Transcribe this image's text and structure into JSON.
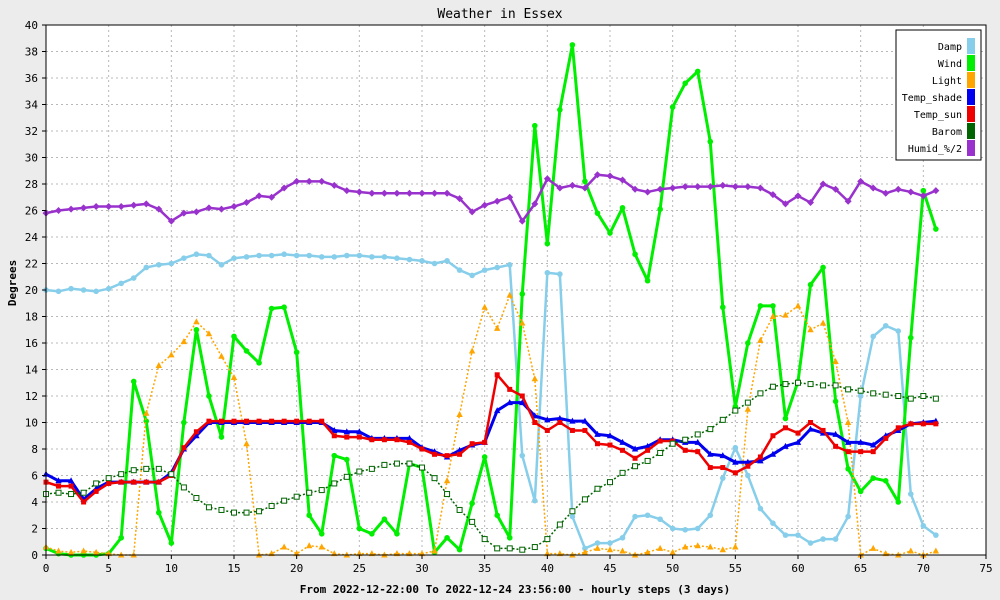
{
  "chart_data": {
    "type": "line",
    "title": "Weather in Essex",
    "xlabel": "From 2022-12-22:00 To 2022-12-24 23:56:00 - hourly steps (3 days)",
    "ylabel": "Degrees",
    "xlim": [
      0,
      75
    ],
    "ylim": [
      0,
      40
    ],
    "xticks": [
      0,
      5,
      10,
      15,
      20,
      25,
      30,
      35,
      40,
      45,
      50,
      55,
      60,
      65,
      70,
      75
    ],
    "yticks": [
      0,
      2,
      4,
      6,
      8,
      10,
      12,
      14,
      16,
      18,
      20,
      22,
      24,
      26,
      28,
      30,
      32,
      34,
      36,
      38,
      40
    ],
    "grid": true,
    "legend_position": "top-right",
    "x": [
      0,
      1,
      2,
      3,
      4,
      5,
      6,
      7,
      8,
      9,
      10,
      11,
      12,
      13,
      14,
      15,
      16,
      17,
      18,
      19,
      20,
      21,
      22,
      23,
      24,
      25,
      26,
      27,
      28,
      29,
      30,
      31,
      32,
      33,
      34,
      35,
      36,
      37,
      38,
      39,
      40,
      41,
      42,
      43,
      44,
      45,
      46,
      47,
      48,
      49,
      50,
      51,
      52,
      53,
      54,
      55,
      56,
      57,
      58,
      59,
      60,
      61,
      62,
      63,
      64,
      65,
      66,
      67,
      68,
      69,
      70,
      71
    ],
    "series": [
      {
        "name": "Damp",
        "color": "#87ceeb",
        "marker": "circle",
        "values": [
          20.0,
          19.9,
          20.1,
          20.0,
          19.9,
          20.1,
          20.5,
          20.9,
          21.7,
          21.9,
          22.0,
          22.4,
          22.7,
          22.6,
          21.9,
          22.4,
          22.5,
          22.6,
          22.6,
          22.7,
          22.6,
          22.6,
          22.5,
          22.5,
          22.6,
          22.6,
          22.5,
          22.5,
          22.4,
          22.3,
          22.2,
          22.0,
          22.2,
          21.5,
          21.1,
          21.5,
          21.7,
          21.9,
          7.5,
          4.1,
          21.3,
          21.2,
          2.9,
          0.5,
          0.9,
          0.9,
          1.3,
          2.9,
          3.0,
          2.7,
          2.0,
          1.9,
          2.0,
          3.0,
          5.8,
          8.1,
          6.0,
          3.5,
          2.4,
          1.5,
          1.5,
          0.9,
          1.2,
          1.2,
          2.9,
          12.0,
          16.5,
          17.3,
          16.9,
          4.6,
          2.2,
          1.5
        ]
      },
      {
        "name": "Wind",
        "color": "#00ee00",
        "marker": "circle",
        "values": [
          0.5,
          0.1,
          0.0,
          0.0,
          0.0,
          0.1,
          1.3,
          13.1,
          10.1,
          3.2,
          0.9,
          10.0,
          17.0,
          12.0,
          8.9,
          16.5,
          15.4,
          14.5,
          18.6,
          18.7,
          15.3,
          3.0,
          1.6,
          7.5,
          7.2,
          2.0,
          1.6,
          2.7,
          1.6,
          6.9,
          6.6,
          0.2,
          1.3,
          0.4,
          3.9,
          7.4,
          3.0,
          1.3,
          19.7,
          32.4,
          23.5,
          33.6,
          38.5,
          28.2,
          25.8,
          24.3,
          26.2,
          22.7,
          20.7,
          26.1,
          33.8,
          35.6,
          36.5,
          31.2,
          18.7,
          11.2,
          16.0,
          18.8,
          18.8,
          10.3,
          13.1,
          20.4,
          21.7,
          11.6,
          6.5,
          4.8,
          5.8,
          5.6,
          4.0,
          16.4,
          27.5,
          24.6
        ]
      },
      {
        "name": "Light",
        "color": "#ffa500",
        "marker": "triangle",
        "values": [
          0.6,
          0.3,
          0.2,
          0.3,
          0.2,
          0.1,
          0.0,
          0.0,
          10.7,
          14.3,
          15.1,
          16.1,
          17.6,
          16.7,
          15.0,
          13.4,
          8.4,
          0.0,
          0.1,
          0.6,
          0.1,
          0.7,
          0.6,
          0.1,
          0.0,
          0.1,
          0.1,
          0.0,
          0.1,
          0.1,
          0.1,
          0.3,
          5.6,
          10.6,
          15.4,
          18.7,
          17.1,
          19.6,
          17.5,
          13.3,
          0.1,
          0.1,
          0.0,
          0.2,
          0.5,
          0.4,
          0.3,
          0.0,
          0.2,
          0.5,
          0.2,
          0.6,
          0.7,
          0.6,
          0.4,
          0.6,
          11.0,
          16.2,
          18.0,
          18.1,
          18.8,
          17.0,
          17.5,
          14.6,
          10.0,
          0.0,
          0.5,
          0.1,
          0.0,
          0.3,
          0.0,
          0.3
        ]
      },
      {
        "name": "Temp_shade",
        "color": "#0000ee",
        "marker": "triangle",
        "values": [
          6.1,
          5.6,
          5.6,
          4.2,
          5.0,
          5.5,
          5.5,
          5.5,
          5.5,
          5.5,
          6.2,
          8.0,
          9.0,
          10.0,
          10.0,
          10.0,
          10.0,
          10.0,
          10.0,
          10.0,
          10.0,
          10.0,
          10.0,
          9.4,
          9.3,
          9.3,
          8.8,
          8.8,
          8.8,
          8.8,
          8.1,
          7.8,
          7.4,
          7.9,
          8.3,
          8.5,
          10.9,
          11.5,
          11.5,
          10.5,
          10.2,
          10.3,
          10.1,
          10.1,
          9.1,
          9.0,
          8.5,
          8.0,
          8.2,
          8.7,
          8.7,
          8.5,
          8.5,
          7.6,
          7.5,
          7.0,
          7.0,
          7.1,
          7.6,
          8.2,
          8.5,
          9.5,
          9.2,
          9.1,
          8.5,
          8.5,
          8.3,
          9.0,
          9.4,
          9.9,
          10.0,
          10.1
        ]
      },
      {
        "name": "Temp_sun",
        "color": "#ee0000",
        "marker": "square",
        "values": [
          5.5,
          5.2,
          5.2,
          4.0,
          4.8,
          5.4,
          5.5,
          5.5,
          5.5,
          5.5,
          6.0,
          8.1,
          9.3,
          10.1,
          10.1,
          10.1,
          10.1,
          10.1,
          10.1,
          10.1,
          10.1,
          10.1,
          10.1,
          9.0,
          8.9,
          8.9,
          8.7,
          8.7,
          8.7,
          8.5,
          8.0,
          7.6,
          7.5,
          7.6,
          8.4,
          8.5,
          13.6,
          12.5,
          12.0,
          10.0,
          9.4,
          10.0,
          9.4,
          9.4,
          8.4,
          8.3,
          7.9,
          7.3,
          7.9,
          8.6,
          8.6,
          7.9,
          7.8,
          6.6,
          6.6,
          6.2,
          6.7,
          7.4,
          9.0,
          9.6,
          9.2,
          10.0,
          9.4,
          8.2,
          7.8,
          7.8,
          7.8,
          8.8,
          9.6,
          9.9,
          9.9,
          9.9
        ]
      },
      {
        "name": "Barom",
        "color": "#006400",
        "marker": "hollow-square",
        "values": [
          4.6,
          4.7,
          4.6,
          4.7,
          5.4,
          5.8,
          6.1,
          6.4,
          6.5,
          6.5,
          6.1,
          5.1,
          4.3,
          3.6,
          3.4,
          3.2,
          3.2,
          3.3,
          3.7,
          4.1,
          4.4,
          4.7,
          4.9,
          5.4,
          5.9,
          6.3,
          6.5,
          6.8,
          6.9,
          6.9,
          6.6,
          5.8,
          4.6,
          3.4,
          2.5,
          1.2,
          0.5,
          0.5,
          0.4,
          0.6,
          1.2,
          2.3,
          3.3,
          4.2,
          5.0,
          5.5,
          6.2,
          6.7,
          7.1,
          7.7,
          8.4,
          8.7,
          9.1,
          9.5,
          10.2,
          10.9,
          11.5,
          12.2,
          12.7,
          12.9,
          13.0,
          12.9,
          12.8,
          12.8,
          12.5,
          12.4,
          12.2,
          12.1,
          12.0,
          11.8,
          12.0,
          11.8
        ]
      },
      {
        "name": "Humid_%/2",
        "color": "#9932cc",
        "marker": "diamond",
        "values": [
          25.8,
          26.0,
          26.1,
          26.2,
          26.3,
          26.3,
          26.3,
          26.4,
          26.5,
          26.1,
          25.2,
          25.8,
          25.9,
          26.2,
          26.1,
          26.3,
          26.6,
          27.1,
          27.0,
          27.7,
          28.2,
          28.2,
          28.2,
          27.9,
          27.5,
          27.4,
          27.3,
          27.3,
          27.3,
          27.3,
          27.3,
          27.3,
          27.3,
          26.9,
          25.9,
          26.4,
          26.7,
          27.0,
          25.2,
          26.5,
          28.4,
          27.7,
          27.9,
          27.7,
          28.7,
          28.6,
          28.3,
          27.6,
          27.4,
          27.6,
          27.7,
          27.8,
          27.8,
          27.8,
          27.9,
          27.8,
          27.8,
          27.7,
          27.2,
          26.5,
          27.1,
          26.6,
          28.0,
          27.6,
          26.7,
          28.2,
          27.7,
          27.3,
          27.6,
          27.4,
          27.1,
          27.5
        ]
      }
    ]
  }
}
